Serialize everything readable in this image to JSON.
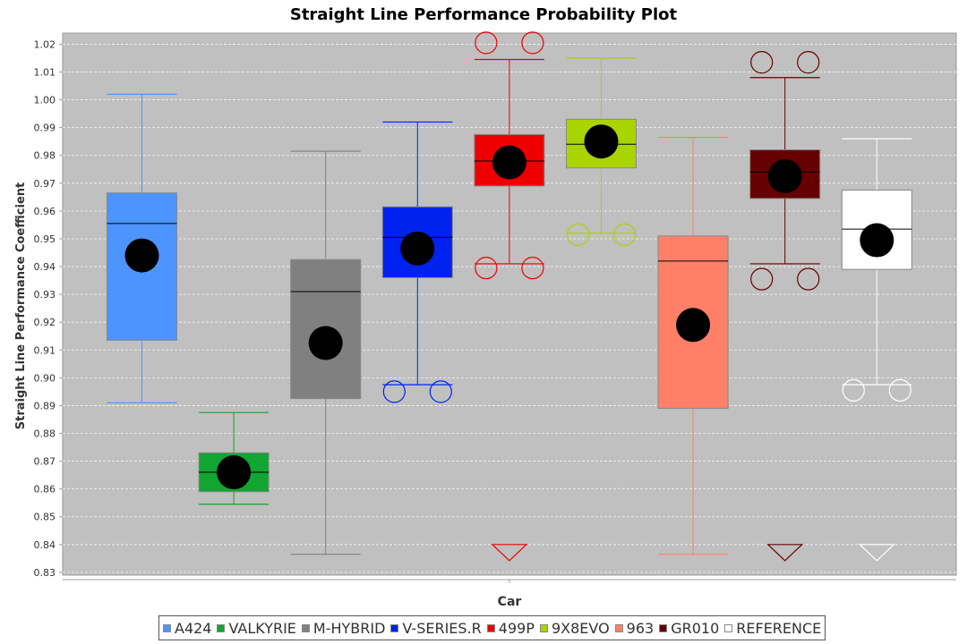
{
  "chart_data": {
    "type": "box",
    "title": "Straight Line Performance Probability Plot",
    "xlabel": "Car",
    "ylabel": "Straight Line Performance Coefficient",
    "ylim": [
      0.83,
      1.02
    ],
    "yticks": [
      0.83,
      0.84,
      0.85,
      0.86,
      0.87,
      0.88,
      0.89,
      0.9,
      0.91,
      0.92,
      0.93,
      0.94,
      0.95,
      0.96,
      0.97,
      0.98,
      0.99,
      1.0,
      1.01,
      1.02
    ],
    "ytick_labels": [
      "0.83",
      "0.84",
      "0.85",
      "0.86",
      "0.87",
      "0.88",
      "0.89",
      "0.90",
      "0.91",
      "0.92",
      "0.93",
      "0.94",
      "0.95",
      "0.96",
      "0.97",
      "0.98",
      "0.99",
      "1.00",
      "1.01",
      "1.02"
    ],
    "grid": true,
    "legend_position": "bottom",
    "background": "#c0c0c0",
    "series": [
      {
        "name": "A424",
        "color": "#4d94ff",
        "whisker_low": 0.891,
        "q1": 0.9135,
        "median": 0.9555,
        "q3": 0.9665,
        "whisker_high": 1.002,
        "mean": 0.944,
        "outliers": [],
        "low_outside": false,
        "high_outside": false
      },
      {
        "name": "VALKYRIE",
        "color": "#11a532",
        "whisker_low": 0.8545,
        "q1": 0.859,
        "median": 0.866,
        "q3": 0.873,
        "whisker_high": 0.8875,
        "mean": 0.866,
        "outliers": [],
        "low_outside": false,
        "high_outside": false
      },
      {
        "name": "M-HYBRID",
        "color": "#808080",
        "whisker_low": 0.8365,
        "q1": 0.8925,
        "median": 0.931,
        "q3": 0.9425,
        "whisker_high": 0.9815,
        "mean": 0.9125,
        "outliers": [],
        "low_outside": false,
        "high_outside": false
      },
      {
        "name": "V-SERIES.R",
        "color": "#0022ee",
        "whisker_low": 0.8975,
        "q1": 0.936,
        "median": 0.9505,
        "q3": 0.9615,
        "whisker_high": 0.992,
        "mean": 0.9465,
        "outliers": [
          0.895
        ],
        "low_outside": false,
        "high_outside": false
      },
      {
        "name": "499P",
        "color": "#ee0000",
        "whisker_low": 0.941,
        "q1": 0.969,
        "median": 0.978,
        "q3": 0.9875,
        "whisker_high": 1.0145,
        "mean": 0.9775,
        "outliers": [
          0.9395,
          1.0205
        ],
        "low_outside": true,
        "high_outside": false
      },
      {
        "name": "9X8EVO",
        "color": "#aad400",
        "whisker_low": 0.952,
        "q1": 0.9755,
        "median": 0.984,
        "q3": 0.993,
        "whisker_high": 1.015,
        "mean": 0.985,
        "outliers": [
          0.9515
        ],
        "low_outside": false,
        "high_outside": false
      },
      {
        "name": "963",
        "color": "#ff7f67",
        "whisker_low": 0.8365,
        "q1": 0.889,
        "median": 0.942,
        "q3": 0.951,
        "whisker_high": 0.9865,
        "mean": 0.919,
        "outliers": [],
        "low_outside": false,
        "high_outside": false
      },
      {
        "name": "GR010",
        "color": "#660000",
        "whisker_low": 0.941,
        "q1": 0.9645,
        "median": 0.974,
        "q3": 0.982,
        "whisker_high": 1.008,
        "mean": 0.9725,
        "outliers": [
          0.9355,
          1.0135
        ],
        "low_outside": true,
        "high_outside": false
      },
      {
        "name": "REFERENCE",
        "color": "#ffffff",
        "whisker_low": 0.8975,
        "q1": 0.939,
        "median": 0.9535,
        "q3": 0.9675,
        "whisker_high": 0.986,
        "mean": 0.9495,
        "outliers": [
          0.8955
        ],
        "low_outside": true,
        "high_outside": false
      }
    ]
  }
}
